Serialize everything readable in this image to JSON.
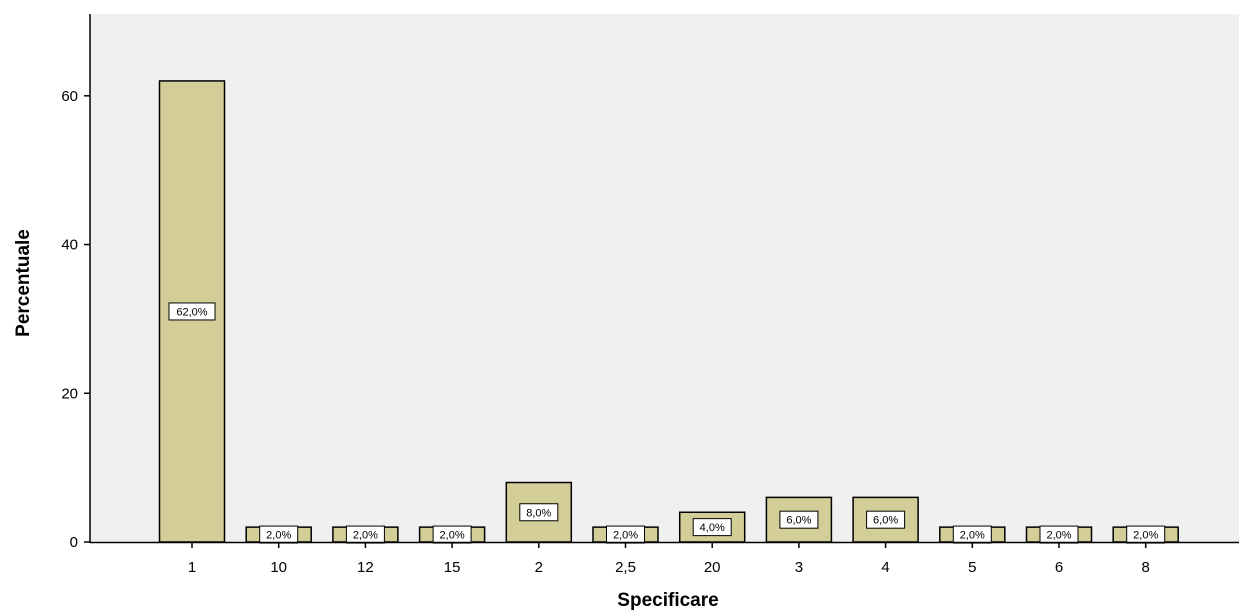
{
  "chart_data": {
    "type": "bar",
    "title": "",
    "xlabel": "Specificare",
    "ylabel": "Percentuale",
    "categories": [
      "1",
      "10",
      "12",
      "15",
      "2",
      "2,5",
      "20",
      "3",
      "4",
      "5",
      "6",
      "8"
    ],
    "values": [
      62,
      2,
      2,
      2,
      8,
      2,
      4,
      6,
      6,
      2,
      2,
      2
    ],
    "data_labels": [
      "62,0%",
      "2,0%",
      "2,0%",
      "2,0%",
      "8,0%",
      "2,0%",
      "4,0%",
      "6,0%",
      "6,0%",
      "2,0%",
      "2,0%",
      "2,0%"
    ],
    "y_ticks": [
      0,
      20,
      40,
      60
    ],
    "ylim": [
      0,
      71
    ],
    "grid": false,
    "colors": {
      "plot_background": "#f0f0f0",
      "bar_fill": "#d3ce97",
      "bar_stroke": "#000000"
    }
  }
}
